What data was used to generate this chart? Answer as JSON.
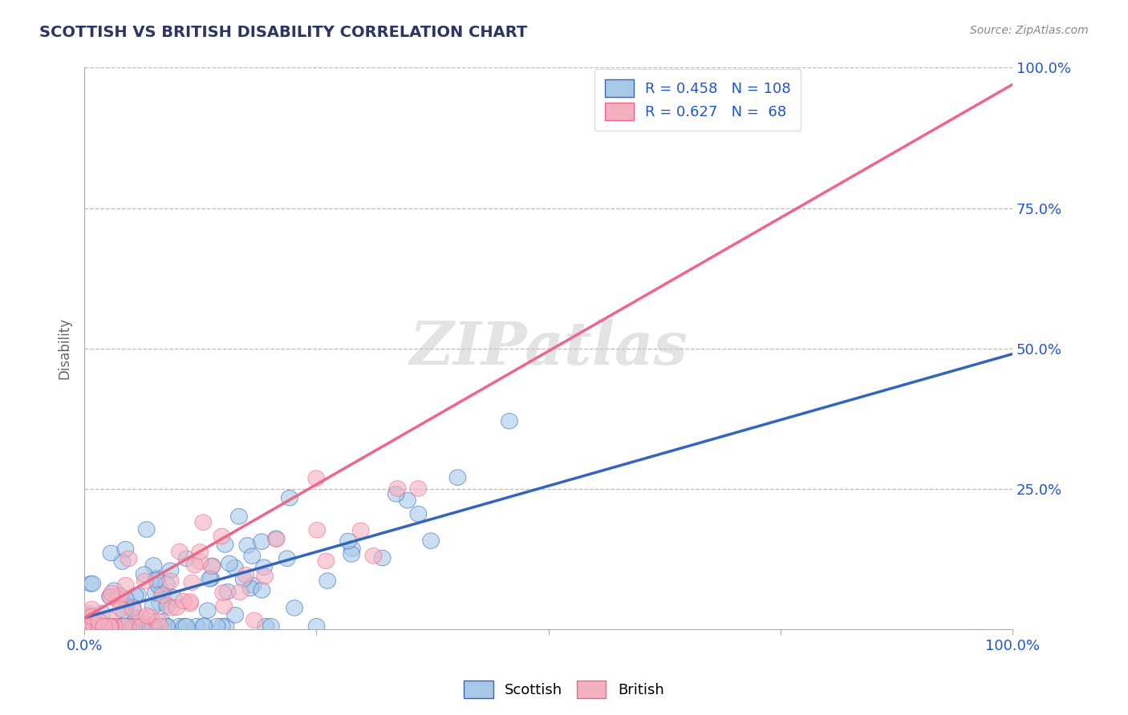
{
  "title": "SCOTTISH VS BRITISH DISABILITY CORRELATION CHART",
  "source": "Source: ZipAtlas.com",
  "ylabel": "Disability",
  "xlabel": "",
  "xlim": [
    0,
    1
  ],
  "ylim": [
    0,
    1
  ],
  "scottish_color": "#a8c8e8",
  "british_color": "#f4b0c0",
  "scottish_line_color": "#3366bb",
  "british_line_color": "#ee6688",
  "legend_text_color": "#2255cc",
  "title_color": "#2d3561",
  "background_color": "#ffffff",
  "grid_color": "#bbbbbb",
  "watermark": "ZIPatlas",
  "scottish_R": 0.458,
  "scottish_N": 108,
  "british_R": 0.627,
  "british_N": 68,
  "scatter_alpha": 0.6
}
